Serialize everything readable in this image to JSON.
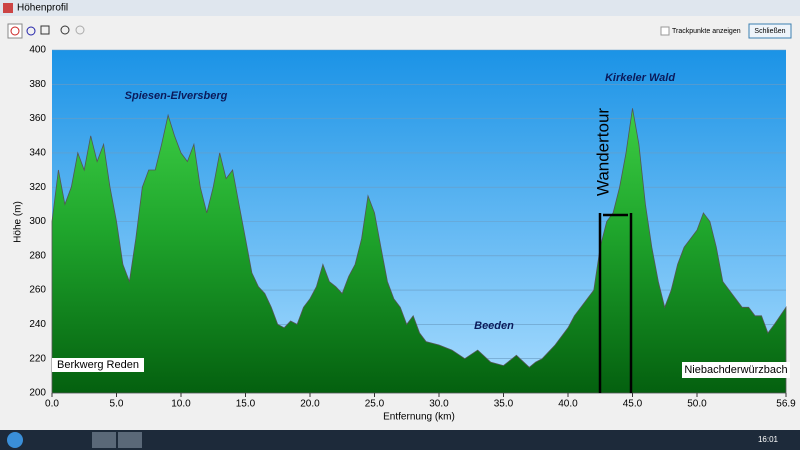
{
  "window": {
    "title": "Höhenprofil",
    "checkbox_label": "Trackpunkte anzeigen",
    "close_button": "Schließen"
  },
  "taskbar": {
    "clock": "16:01"
  },
  "chart_data": {
    "type": "area",
    "x_label": "Entfernung   (km)",
    "y_label": "Höhe (m)",
    "color": "#1fa52c",
    "x": [
      0,
      0.5,
      1,
      1.5,
      2,
      2.5,
      3,
      3.5,
      4,
      4.5,
      5,
      5.5,
      6,
      6.5,
      7,
      7.5,
      8,
      8.5,
      9,
      9.5,
      10,
      10.5,
      11,
      11.5,
      12,
      12.5,
      13,
      13.5,
      14,
      14.5,
      15,
      15.5,
      16,
      16.5,
      17,
      17.5,
      18,
      18.5,
      19,
      19.5,
      20,
      20.5,
      21,
      21.5,
      22,
      22.5,
      23,
      23.5,
      24,
      24.5,
      25,
      25.5,
      26,
      26.5,
      27,
      27.5,
      28,
      28.5,
      29,
      30,
      31,
      32,
      33,
      34,
      35,
      36,
      37,
      37.5,
      38,
      39,
      40,
      40.5,
      41,
      41.5,
      42,
      42.5,
      43,
      43.5,
      44,
      44.5,
      45,
      45.5,
      46,
      46.5,
      47,
      47.5,
      48,
      48.5,
      49,
      49.5,
      50,
      50.5,
      51,
      51.5,
      52,
      52.5,
      53,
      53.5,
      54,
      54.5,
      55,
      55.5,
      56,
      56.9
    ],
    "values": [
      300,
      330,
      310,
      320,
      340,
      330,
      350,
      335,
      345,
      320,
      300,
      275,
      265,
      290,
      320,
      330,
      330,
      345,
      362,
      350,
      340,
      335,
      345,
      320,
      305,
      320,
      340,
      325,
      330,
      310,
      290,
      270,
      262,
      258,
      250,
      240,
      238,
      242,
      240,
      250,
      255,
      262,
      275,
      265,
      262,
      258,
      268,
      275,
      290,
      315,
      305,
      285,
      265,
      255,
      250,
      240,
      245,
      235,
      230,
      228,
      225,
      220,
      225,
      218,
      216,
      222,
      215,
      218,
      220,
      228,
      238,
      245,
      250,
      255,
      260,
      285,
      300,
      305,
      320,
      340,
      366,
      345,
      310,
      285,
      265,
      250,
      260,
      275,
      285,
      290,
      295,
      305,
      300,
      285,
      265,
      260,
      255,
      250,
      250,
      245,
      245,
      235,
      240,
      250
    ],
    "xlim": [
      0,
      56.9
    ],
    "ylim": [
      200,
      400
    ],
    "xticks": [
      {
        "value": 0,
        "label": "0.0"
      },
      {
        "value": 5,
        "label": "5.0"
      },
      {
        "value": 10,
        "label": "10.0"
      },
      {
        "value": 15,
        "label": "15.0"
      },
      {
        "value": 20,
        "label": "20.0"
      },
      {
        "value": 25,
        "label": "25.0"
      },
      {
        "value": 30,
        "label": "30.0"
      },
      {
        "value": 35,
        "label": "35.0"
      },
      {
        "value": 40,
        "label": "40.0"
      },
      {
        "value": 45,
        "label": "45.0"
      },
      {
        "value": 50,
        "label": "50.0"
      },
      56.9
    ],
    "yticks": [
      200,
      220,
      240,
      260,
      280,
      300,
      320,
      340,
      360,
      380,
      400
    ],
    "grid": true,
    "annotations": [
      "Spiesen-Elversberg",
      "Kirkeler Wald",
      "Beeden",
      "Wandertour",
      "Berkwerg Reden",
      "Niebachderwürzbach"
    ]
  }
}
